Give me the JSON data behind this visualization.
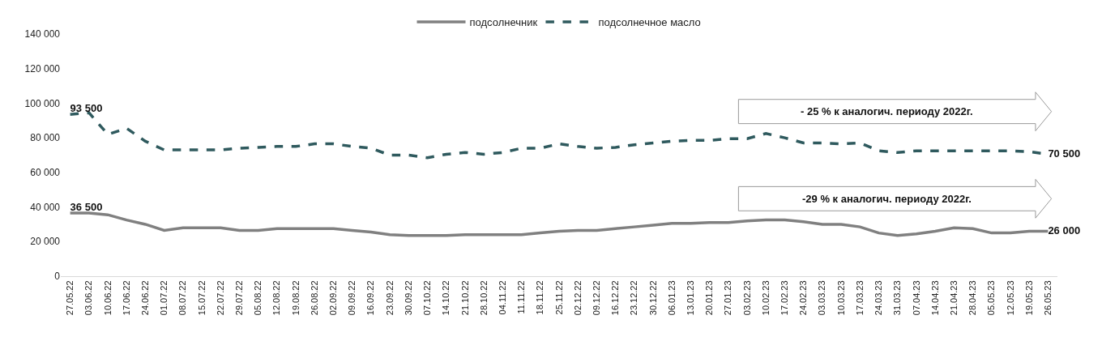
{
  "chart_data": {
    "type": "line",
    "categories": [
      "27.05.22",
      "03.06.22",
      "10.06.22",
      "17.06.22",
      "24.06.22",
      "01.07.22",
      "08.07.22",
      "15.07.22",
      "22.07.22",
      "29.07.22",
      "05.08.22",
      "12.08.22",
      "19.08.22",
      "26.08.22",
      "02.09.22",
      "09.09.22",
      "16.09.22",
      "23.09.22",
      "30.09.22",
      "07.10.22",
      "14.10.22",
      "21.10.22",
      "28.10.22",
      "04.11.22",
      "11.11.22",
      "18.11.22",
      "25.11.22",
      "02.12.22",
      "09.12.22",
      "16.12.22",
      "23.12.22",
      "30.12.22",
      "06.01.23",
      "13.01.23",
      "20.01.23",
      "27.01.23",
      "03.02.23",
      "10.02.23",
      "17.02.23",
      "24.02.23",
      "03.03.23",
      "10.03.23",
      "17.03.23",
      "24.03.23",
      "31.03.23",
      "07.04.23",
      "14.04.23",
      "21.04.23",
      "28.04.23",
      "05.05.23",
      "12.05.23",
      "19.05.23",
      "26.05.23"
    ],
    "series": [
      {
        "name": "подсолнечник",
        "color": "#808080",
        "line_style": "solid",
        "values": [
          36500,
          36500,
          35500,
          32500,
          30000,
          26500,
          28000,
          28000,
          28000,
          26500,
          26500,
          27500,
          27500,
          27500,
          27500,
          26500,
          25500,
          24000,
          23500,
          23500,
          23500,
          24000,
          24000,
          24000,
          24000,
          25000,
          26000,
          26500,
          26500,
          27500,
          28500,
          29500,
          30500,
          30500,
          31000,
          31000,
          32000,
          32500,
          32500,
          31500,
          30000,
          30000,
          28500,
          25000,
          23500,
          24500,
          26000,
          28000,
          27500,
          25000,
          25000,
          26000,
          26000
        ],
        "value_labels": [
          "36 500",
          null,
          null,
          null,
          null,
          null,
          null,
          null,
          null,
          null,
          null,
          null,
          null,
          null,
          null,
          null,
          null,
          null,
          null,
          null,
          null,
          null,
          null,
          null,
          null,
          null,
          null,
          null,
          null,
          null,
          null,
          null,
          null,
          null,
          null,
          null,
          null,
          null,
          null,
          null,
          null,
          null,
          null,
          null,
          null,
          null,
          null,
          null,
          null,
          null,
          null,
          null,
          "26 000"
        ]
      },
      {
        "name": "подсолнечное масло",
        "color": "#2f5a5e",
        "line_style": "dashed",
        "values": [
          93500,
          94500,
          82000,
          85500,
          78000,
          73000,
          73000,
          73000,
          73000,
          74000,
          74500,
          75000,
          75000,
          76500,
          76500,
          75000,
          74000,
          70000,
          70000,
          68500,
          70500,
          71500,
          70500,
          71500,
          74000,
          74000,
          76500,
          75000,
          74000,
          74500,
          76000,
          77000,
          78000,
          78500,
          78500,
          79500,
          79500,
          82500,
          80000,
          77000,
          77000,
          76500,
          77000,
          72500,
          71500,
          72500,
          72500,
          72500,
          72500,
          72500,
          72500,
          72000,
          70500
        ],
        "value_labels": [
          "93 500",
          null,
          null,
          null,
          null,
          null,
          null,
          null,
          null,
          null,
          null,
          null,
          null,
          null,
          null,
          null,
          null,
          null,
          null,
          null,
          null,
          null,
          null,
          null,
          null,
          null,
          null,
          null,
          null,
          null,
          null,
          null,
          null,
          null,
          null,
          null,
          null,
          null,
          null,
          null,
          null,
          null,
          null,
          null,
          null,
          null,
          null,
          null,
          null,
          null,
          null,
          null,
          "70 500"
        ]
      }
    ],
    "ylim": [
      0,
      140000
    ],
    "yticks": [
      {
        "value": 0,
        "label": "0"
      },
      {
        "value": 20000,
        "label": "20 000"
      },
      {
        "value": 40000,
        "label": "40 000"
      },
      {
        "value": 60000,
        "label": "60 000"
      },
      {
        "value": 80000,
        "label": "80 000"
      },
      {
        "value": 100000,
        "label": "100 000"
      },
      {
        "value": 120000,
        "label": "120 000"
      },
      {
        "value": 140000,
        "label": "140 000"
      }
    ],
    "grid": false,
    "legend": "top",
    "marker": "none",
    "annotations": [
      "- 25 % к аналогич. периоду 2022г.",
      "-29 % к аналогич. периоду 2022г."
    ]
  }
}
